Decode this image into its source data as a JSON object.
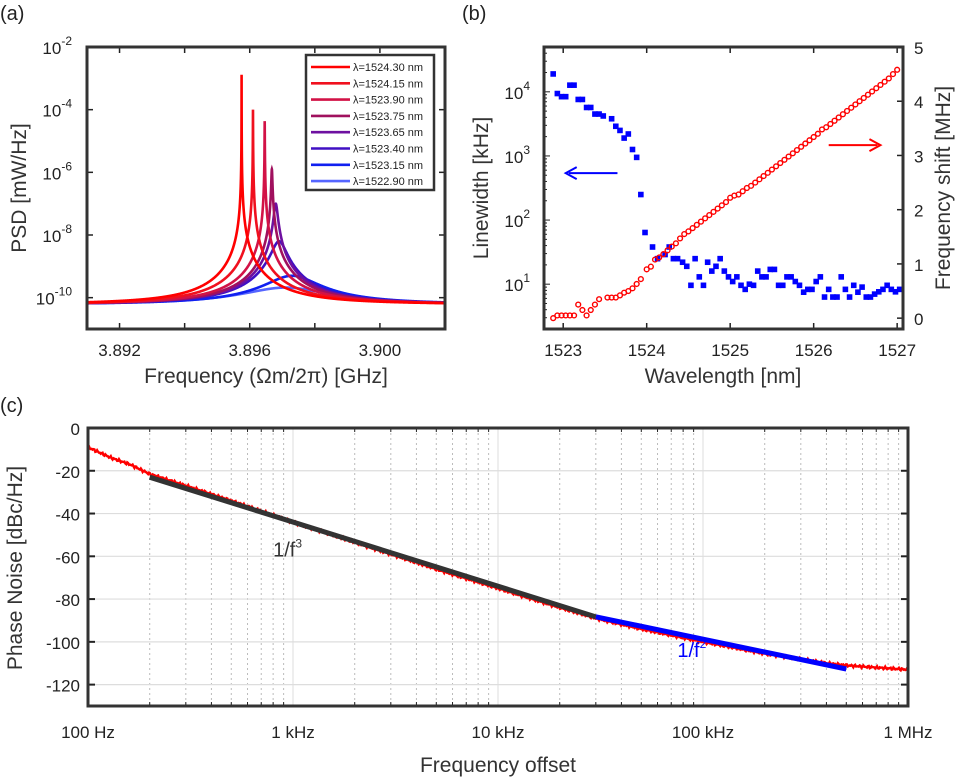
{
  "panel_labels": {
    "a": "(a)",
    "b": "(b)",
    "c": "(c)"
  },
  "chart_data": [
    {
      "panel": "a",
      "type": "line",
      "xlabel": "Frequency (Ωm/2π) [GHz]",
      "ylabel": "PSD [mW/Hz]",
      "xlim": [
        3.891,
        3.902
      ],
      "ylim": [
        1e-11,
        0.01
      ],
      "yscale": "log",
      "xticks": [
        3.892,
        3.894,
        3.896,
        3.898,
        3.9
      ],
      "xtick_labels": [
        "3.892",
        "",
        "3.896",
        "",
        "3.900"
      ],
      "ytick_base": "10",
      "ytick_exponents": [
        "-2",
        "-4",
        "-6",
        "-8",
        "-10"
      ],
      "legend_position": "top-right",
      "baseline_psd": 6e-11,
      "series": [
        {
          "name": "λ=1524.30 nm",
          "color": "#ff0000",
          "center_GHz": 3.89575,
          "peak_psd": 0.0013,
          "fwhm_MHz": 0.0009
        },
        {
          "name": "λ=1524.15 nm",
          "color": "#f0101e",
          "center_GHz": 3.8961,
          "peak_psd": 0.0001,
          "fwhm_MHz": 0.0032
        },
        {
          "name": "λ=1523.90 nm",
          "color": "#d21246",
          "center_GHz": 3.89646,
          "peak_psd": 4.3e-05,
          "fwhm_MHz": 0.0048
        },
        {
          "name": "λ=1523.75 nm",
          "color": "#a0105e",
          "center_GHz": 3.89668,
          "peak_psd": 1.26e-06,
          "fwhm_MHz": 0.028
        },
        {
          "name": "λ=1523.65 nm",
          "color": "#6e10a0",
          "center_GHz": 3.8968,
          "peak_psd": 1e-07,
          "fwhm_MHz": 0.1
        },
        {
          "name": "λ=1523.40 nm",
          "color": "#4010c4",
          "center_GHz": 3.8969,
          "peak_psd": 6.3e-09,
          "fwhm_MHz": 0.4
        },
        {
          "name": "λ=1523.15 nm",
          "color": "#1020f0",
          "center_GHz": 3.8973,
          "peak_psd": 5e-10,
          "fwhm_MHz": 1.5
        },
        {
          "name": "λ=1522.90 nm",
          "color": "#5565ff",
          "center_GHz": 3.8971,
          "peak_psd": 2.1e-10,
          "fwhm_MHz": 2.6
        }
      ]
    },
    {
      "panel": "b",
      "type": "scatter",
      "xlabel": "Wavelength [nm]",
      "ylabel_left": "Linewidth [kHz]",
      "ylabel_right": "Frequency shift [MHz]",
      "xlim": [
        1522.77,
        1527.07
      ],
      "ylim_left": [
        2,
        50000
      ],
      "yscale_left": "log",
      "ylim_right": [
        -0.2,
        5
      ],
      "xticks": [
        1523,
        1524,
        1525,
        1526,
        1527
      ],
      "xtick_labels": [
        "1523",
        "1524",
        "1525",
        "1526",
        "1527"
      ],
      "ytick_left_base": "10",
      "ytick_left_exponents": [
        "1",
        "2",
        "3",
        "4"
      ],
      "yticks_right": [
        0,
        1,
        2,
        3,
        4,
        5
      ],
      "ytick_right_labels": [
        "0",
        "1",
        "2",
        "3",
        "4",
        "5"
      ],
      "series": [
        {
          "axis": "left",
          "marker": "square",
          "color": "#0000ff",
          "points": [
            [
              1522.88,
              19000
            ],
            [
              1522.93,
              9400
            ],
            [
              1522.98,
              8400
            ],
            [
              1523.03,
              8400
            ],
            [
              1523.08,
              12700
            ],
            [
              1523.13,
              12700
            ],
            [
              1523.18,
              7600
            ],
            [
              1523.23,
              7600
            ],
            [
              1523.28,
              5700
            ],
            [
              1523.33,
              5700
            ],
            [
              1523.38,
              4500
            ],
            [
              1523.43,
              4500
            ],
            [
              1523.48,
              4200
            ],
            [
              1523.58,
              3800
            ],
            [
              1523.63,
              2900
            ],
            [
              1523.68,
              2500
            ],
            [
              1523.73,
              1900
            ],
            [
              1523.78,
              2200
            ],
            [
              1523.83,
              1260
            ],
            [
              1523.88,
              950
            ],
            [
              1523.93,
              250
            ],
            [
              1523.98,
              64
            ],
            [
              1524.07,
              38
            ],
            [
              1524.13,
              25
            ],
            [
              1524.22,
              29
            ],
            [
              1524.27,
              38
            ],
            [
              1524.32,
              25
            ],
            [
              1524.37,
              25
            ],
            [
              1524.43,
              22
            ],
            [
              1524.48,
              19
            ],
            [
              1524.53,
              9.6
            ],
            [
              1524.58,
              25
            ],
            [
              1524.63,
              13
            ],
            [
              1524.68,
              9.6
            ],
            [
              1524.73,
              22
            ],
            [
              1524.78,
              16
            ],
            [
              1524.83,
              19
            ],
            [
              1524.88,
              25
            ],
            [
              1524.93,
              16
            ],
            [
              1524.98,
              13
            ],
            [
              1525.03,
              11
            ],
            [
              1525.08,
              13
            ],
            [
              1525.13,
              9.6
            ],
            [
              1525.18,
              8.3
            ],
            [
              1525.23,
              10
            ],
            [
              1525.28,
              9.6
            ],
            [
              1525.33,
              16
            ],
            [
              1525.38,
              13
            ],
            [
              1525.43,
              13
            ],
            [
              1525.48,
              17
            ],
            [
              1525.53,
              17
            ],
            [
              1525.58,
              9.6
            ],
            [
              1525.63,
              9.6
            ],
            [
              1525.68,
              13
            ],
            [
              1525.73,
              13
            ],
            [
              1525.78,
              11
            ],
            [
              1525.83,
              9.6
            ],
            [
              1525.88,
              7.5
            ],
            [
              1525.93,
              8.3
            ],
            [
              1525.98,
              8.3
            ],
            [
              1526.03,
              11
            ],
            [
              1526.08,
              13
            ],
            [
              1526.13,
              6.3
            ],
            [
              1526.18,
              8.3
            ],
            [
              1526.23,
              6.3
            ],
            [
              1526.28,
              6.3
            ],
            [
              1526.33,
              13
            ],
            [
              1526.38,
              8.3
            ],
            [
              1526.43,
              6.3
            ],
            [
              1526.48,
              9.6
            ],
            [
              1526.53,
              7.5
            ],
            [
              1526.58,
              9
            ],
            [
              1526.63,
              6.3
            ],
            [
              1526.68,
              6.3
            ],
            [
              1526.73,
              7
            ],
            [
              1526.78,
              7.6
            ],
            [
              1526.83,
              8.3
            ],
            [
              1526.88,
              9.6
            ],
            [
              1526.93,
              8.3
            ],
            [
              1526.98,
              7.6
            ],
            [
              1527.03,
              8.3
            ]
          ]
        },
        {
          "axis": "right",
          "marker": "circle",
          "color": "#ff0000",
          "points": [
            [
              1522.88,
              0.0
            ],
            [
              1522.93,
              0.05
            ],
            [
              1522.98,
              0.05
            ],
            [
              1523.03,
              0.05
            ],
            [
              1523.08,
              0.05
            ],
            [
              1523.13,
              0.05
            ],
            [
              1523.18,
              0.25
            ],
            [
              1523.23,
              0.15
            ],
            [
              1523.28,
              0.05
            ],
            [
              1523.33,
              0.15
            ],
            [
              1523.38,
              0.25
            ],
            [
              1523.43,
              0.35
            ],
            [
              1523.53,
              0.38
            ],
            [
              1523.58,
              0.38
            ],
            [
              1523.63,
              0.38
            ],
            [
              1523.68,
              0.42
            ],
            [
              1523.73,
              0.47
            ],
            [
              1523.78,
              0.5
            ],
            [
              1523.83,
              0.55
            ],
            [
              1523.88,
              0.63
            ],
            [
              1523.93,
              0.72
            ],
            [
              1524.0,
              0.9
            ],
            [
              1524.05,
              0.95
            ],
            [
              1524.1,
              1.08
            ],
            [
              1524.15,
              1.12
            ],
            [
              1524.2,
              1.18
            ],
            [
              1524.25,
              1.25
            ],
            [
              1524.3,
              1.32
            ],
            [
              1524.35,
              1.38
            ],
            [
              1524.4,
              1.47
            ],
            [
              1524.45,
              1.55
            ],
            [
              1524.5,
              1.6
            ],
            [
              1524.55,
              1.66
            ],
            [
              1524.6,
              1.72
            ],
            [
              1524.65,
              1.78
            ],
            [
              1524.7,
              1.84
            ],
            [
              1524.75,
              1.9
            ],
            [
              1524.8,
              1.96
            ],
            [
              1524.85,
              2.02
            ],
            [
              1524.9,
              2.08
            ],
            [
              1524.95,
              2.14
            ],
            [
              1525.0,
              2.22
            ],
            [
              1525.05,
              2.26
            ],
            [
              1525.1,
              2.28
            ],
            [
              1525.15,
              2.34
            ],
            [
              1525.2,
              2.4
            ],
            [
              1525.25,
              2.44
            ],
            [
              1525.3,
              2.5
            ],
            [
              1525.35,
              2.56
            ],
            [
              1525.4,
              2.62
            ],
            [
              1525.45,
              2.68
            ],
            [
              1525.5,
              2.74
            ],
            [
              1525.55,
              2.8
            ],
            [
              1525.6,
              2.86
            ],
            [
              1525.65,
              2.92
            ],
            [
              1525.7,
              2.98
            ],
            [
              1525.75,
              3.04
            ],
            [
              1525.8,
              3.1
            ],
            [
              1525.85,
              3.16
            ],
            [
              1525.9,
              3.22
            ],
            [
              1525.95,
              3.28
            ],
            [
              1526.0,
              3.34
            ],
            [
              1526.05,
              3.4
            ],
            [
              1526.1,
              3.48
            ],
            [
              1526.15,
              3.52
            ],
            [
              1526.2,
              3.58
            ],
            [
              1526.25,
              3.64
            ],
            [
              1526.3,
              3.7
            ],
            [
              1526.35,
              3.76
            ],
            [
              1526.4,
              3.82
            ],
            [
              1526.45,
              3.88
            ],
            [
              1526.5,
              3.94
            ],
            [
              1526.55,
              4.0
            ],
            [
              1526.6,
              4.06
            ],
            [
              1526.65,
              4.12
            ],
            [
              1526.7,
              4.18
            ],
            [
              1526.75,
              4.24
            ],
            [
              1526.8,
              4.3
            ],
            [
              1526.85,
              4.36
            ],
            [
              1526.9,
              4.42
            ],
            [
              1526.95,
              4.5
            ],
            [
              1527.0,
              4.58
            ]
          ]
        }
      ],
      "annotations": [
        {
          "type": "arrow",
          "axis": "left",
          "color": "#0000ff",
          "from": [
            1523.65,
            540
          ],
          "to": [
            1523.03,
            540
          ]
        },
        {
          "type": "arrow",
          "axis": "right",
          "color": "#ff0000",
          "from": [
            1526.18,
            3.19
          ],
          "to": [
            1526.8,
            3.19
          ]
        }
      ]
    },
    {
      "panel": "c",
      "type": "line",
      "xlabel": "Frequency offset",
      "ylabel": "Phase Noise [dBc/Hz]",
      "xscale": "log",
      "xlim": [
        100,
        1000000
      ],
      "ylim": [
        -130,
        0
      ],
      "grid": true,
      "xticks": [
        100,
        1000,
        10000,
        100000,
        1000000
      ],
      "xtick_labels": [
        "100 Hz",
        "1 kHz",
        "10 kHz",
        "100 kHz",
        "1 MHz"
      ],
      "yticks": [
        0,
        -20,
        -40,
        -60,
        -80,
        -100,
        -120
      ],
      "ytick_labels": [
        "0",
        "-20",
        "-40",
        "-60",
        "-80",
        "-100",
        "-120"
      ],
      "series": [
        {
          "color": "#ff0000",
          "points": [
            [
              100,
              -9
            ],
            [
              130,
              -14
            ],
            [
              160,
              -17
            ],
            [
              200,
              -21.5
            ],
            [
              300,
              -27
            ],
            [
              500,
              -34
            ],
            [
              1000,
              -44
            ],
            [
              2000,
              -53.5
            ],
            [
              5000,
              -66
            ],
            [
              10000,
              -75
            ],
            [
              20000,
              -84
            ],
            [
              30000,
              -89
            ],
            [
              50000,
              -94
            ],
            [
              100000,
              -100
            ],
            [
              200000,
              -105.5
            ],
            [
              400000,
              -110
            ],
            [
              500000,
              -111
            ],
            [
              700000,
              -112
            ],
            [
              1000000,
              -113
            ]
          ]
        },
        {
          "name": "1/f³",
          "color": "#333333",
          "points": [
            [
              200,
              -23
            ],
            [
              30000,
              -88.3
            ]
          ]
        },
        {
          "name": "1/f²",
          "color": "#0000ff",
          "points": [
            [
              30000,
              -88.3
            ],
            [
              500000,
              -112.7
            ]
          ]
        }
      ],
      "annotations": [
        {
          "text": "1/f",
          "sup": "3",
          "color": "#333333",
          "at": [
            800,
            -60
          ]
        },
        {
          "text": "1/f",
          "sup": "2",
          "color": "#0000ff",
          "at": [
            75000,
            -107
          ]
        }
      ]
    }
  ]
}
